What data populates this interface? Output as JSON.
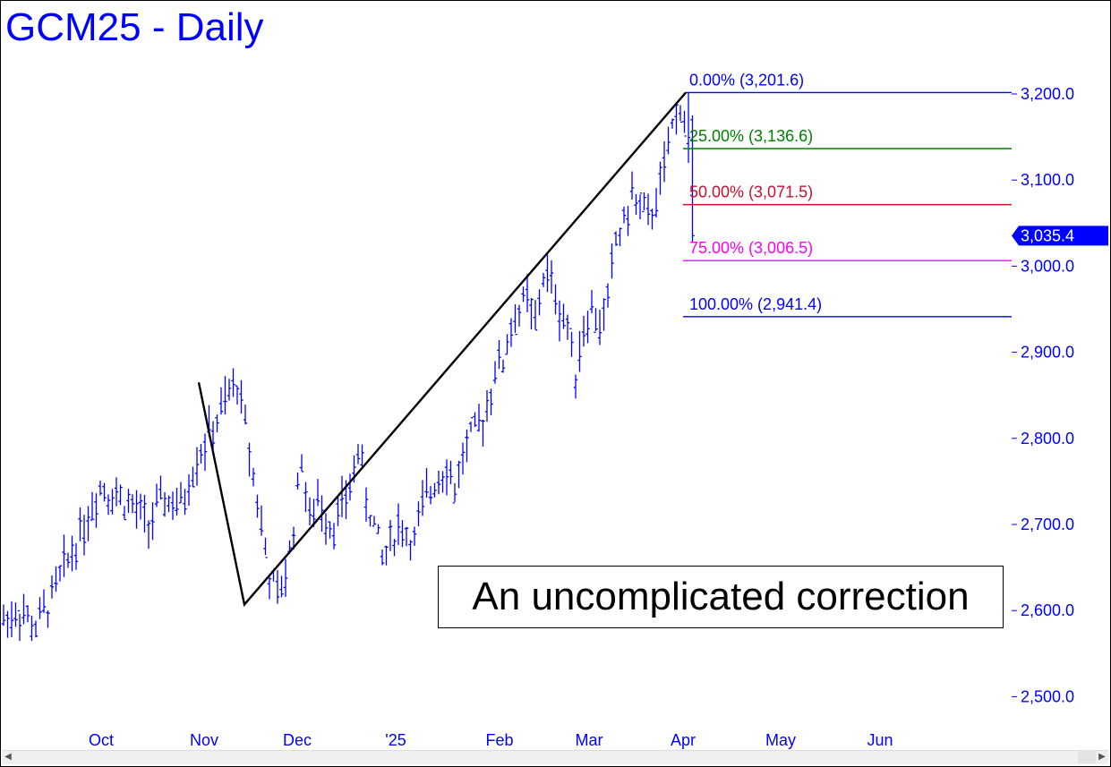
{
  "title": "GCM25 - Daily",
  "annotation": "An uncomplicated correction",
  "price_tag": "3,035.4",
  "chart_data": {
    "type": "ohlc-bar",
    "title": "GCM25 - Daily",
    "x_tick_labels": [
      "Oct",
      "Nov",
      "Dec",
      "'25",
      "Feb",
      "Mar",
      "Apr",
      "May",
      "Jun"
    ],
    "y_tick_labels": [
      "3,200.0",
      "3,100.0",
      "3,000.0",
      "2,900.0",
      "2,800.0",
      "2,700.0",
      "2,600.0",
      "2,500.0"
    ],
    "y_ticks": [
      3200,
      3100,
      3000,
      2900,
      2800,
      2700,
      2600,
      2500
    ],
    "ylim": [
      2465,
      3262
    ],
    "grid": false,
    "last_price": 3035.4,
    "fib_levels": [
      {
        "label": "0.00% (3,201.6)",
        "value": 3201.6,
        "color": "#0000ff"
      },
      {
        "label": "25.00% (3,136.6)",
        "value": 3136.6,
        "color": "#008000"
      },
      {
        "label": "50.00% (3,071.5)",
        "value": 3071.5,
        "color": "#c8102e"
      },
      {
        "label": "75.00% (3,006.5)",
        "value": 3006.5,
        "color": "#ff00ff"
      },
      {
        "label": "100.00% (2,941.4)",
        "value": 2941.4,
        "color": "#0000ff"
      }
    ],
    "trend_line_prices": [
      2865,
      2607,
      3201.6
    ],
    "price_path": [
      [
        0,
        2590
      ],
      [
        4,
        2600
      ],
      [
        8,
        2580
      ],
      [
        12,
        2615
      ],
      [
        16,
        2660
      ],
      [
        20,
        2700
      ],
      [
        24,
        2745
      ],
      [
        28,
        2735
      ],
      [
        32,
        2720
      ],
      [
        36,
        2700
      ],
      [
        40,
        2730
      ],
      [
        44,
        2720
      ],
      [
        48,
        2780
      ],
      [
        52,
        2810
      ],
      [
        56,
        2850
      ],
      [
        58,
        2865
      ],
      [
        60,
        2815
      ],
      [
        63,
        2730
      ],
      [
        66,
        2640
      ],
      [
        68,
        2615
      ],
      [
        70,
        2640
      ],
      [
        72,
        2700
      ],
      [
        74,
        2780
      ],
      [
        76,
        2700
      ],
      [
        78,
        2730
      ],
      [
        80,
        2710
      ],
      [
        82,
        2700
      ],
      [
        84,
        2720
      ],
      [
        86,
        2740
      ],
      [
        88,
        2790
      ],
      [
        90,
        2730
      ],
      [
        92,
        2700
      ],
      [
        94,
        2660
      ],
      [
        96,
        2680
      ],
      [
        98,
        2700
      ],
      [
        100,
        2690
      ],
      [
        102,
        2680
      ],
      [
        104,
        2720
      ],
      [
        106,
        2740
      ],
      [
        108,
        2760
      ],
      [
        110,
        2770
      ],
      [
        112,
        2740
      ],
      [
        114,
        2780
      ],
      [
        116,
        2800
      ],
      [
        118,
        2810
      ],
      [
        120,
        2840
      ],
      [
        122,
        2880
      ],
      [
        124,
        2890
      ],
      [
        126,
        2930
      ],
      [
        128,
        2950
      ],
      [
        130,
        2960
      ],
      [
        132,
        2930
      ],
      [
        134,
        2990
      ],
      [
        136,
        2980
      ],
      [
        138,
        2950
      ],
      [
        140,
        2930
      ],
      [
        142,
        2880
      ],
      [
        144,
        2930
      ],
      [
        146,
        2950
      ],
      [
        148,
        2930
      ],
      [
        150,
        2960
      ],
      [
        152,
        3030
      ],
      [
        154,
        3050
      ],
      [
        156,
        3080
      ],
      [
        158,
        3070
      ],
      [
        160,
        3050
      ],
      [
        162,
        3080
      ],
      [
        164,
        3110
      ],
      [
        166,
        3160
      ],
      [
        168,
        3190
      ],
      [
        170,
        3140
      ],
      [
        171,
        3035.4
      ]
    ]
  }
}
